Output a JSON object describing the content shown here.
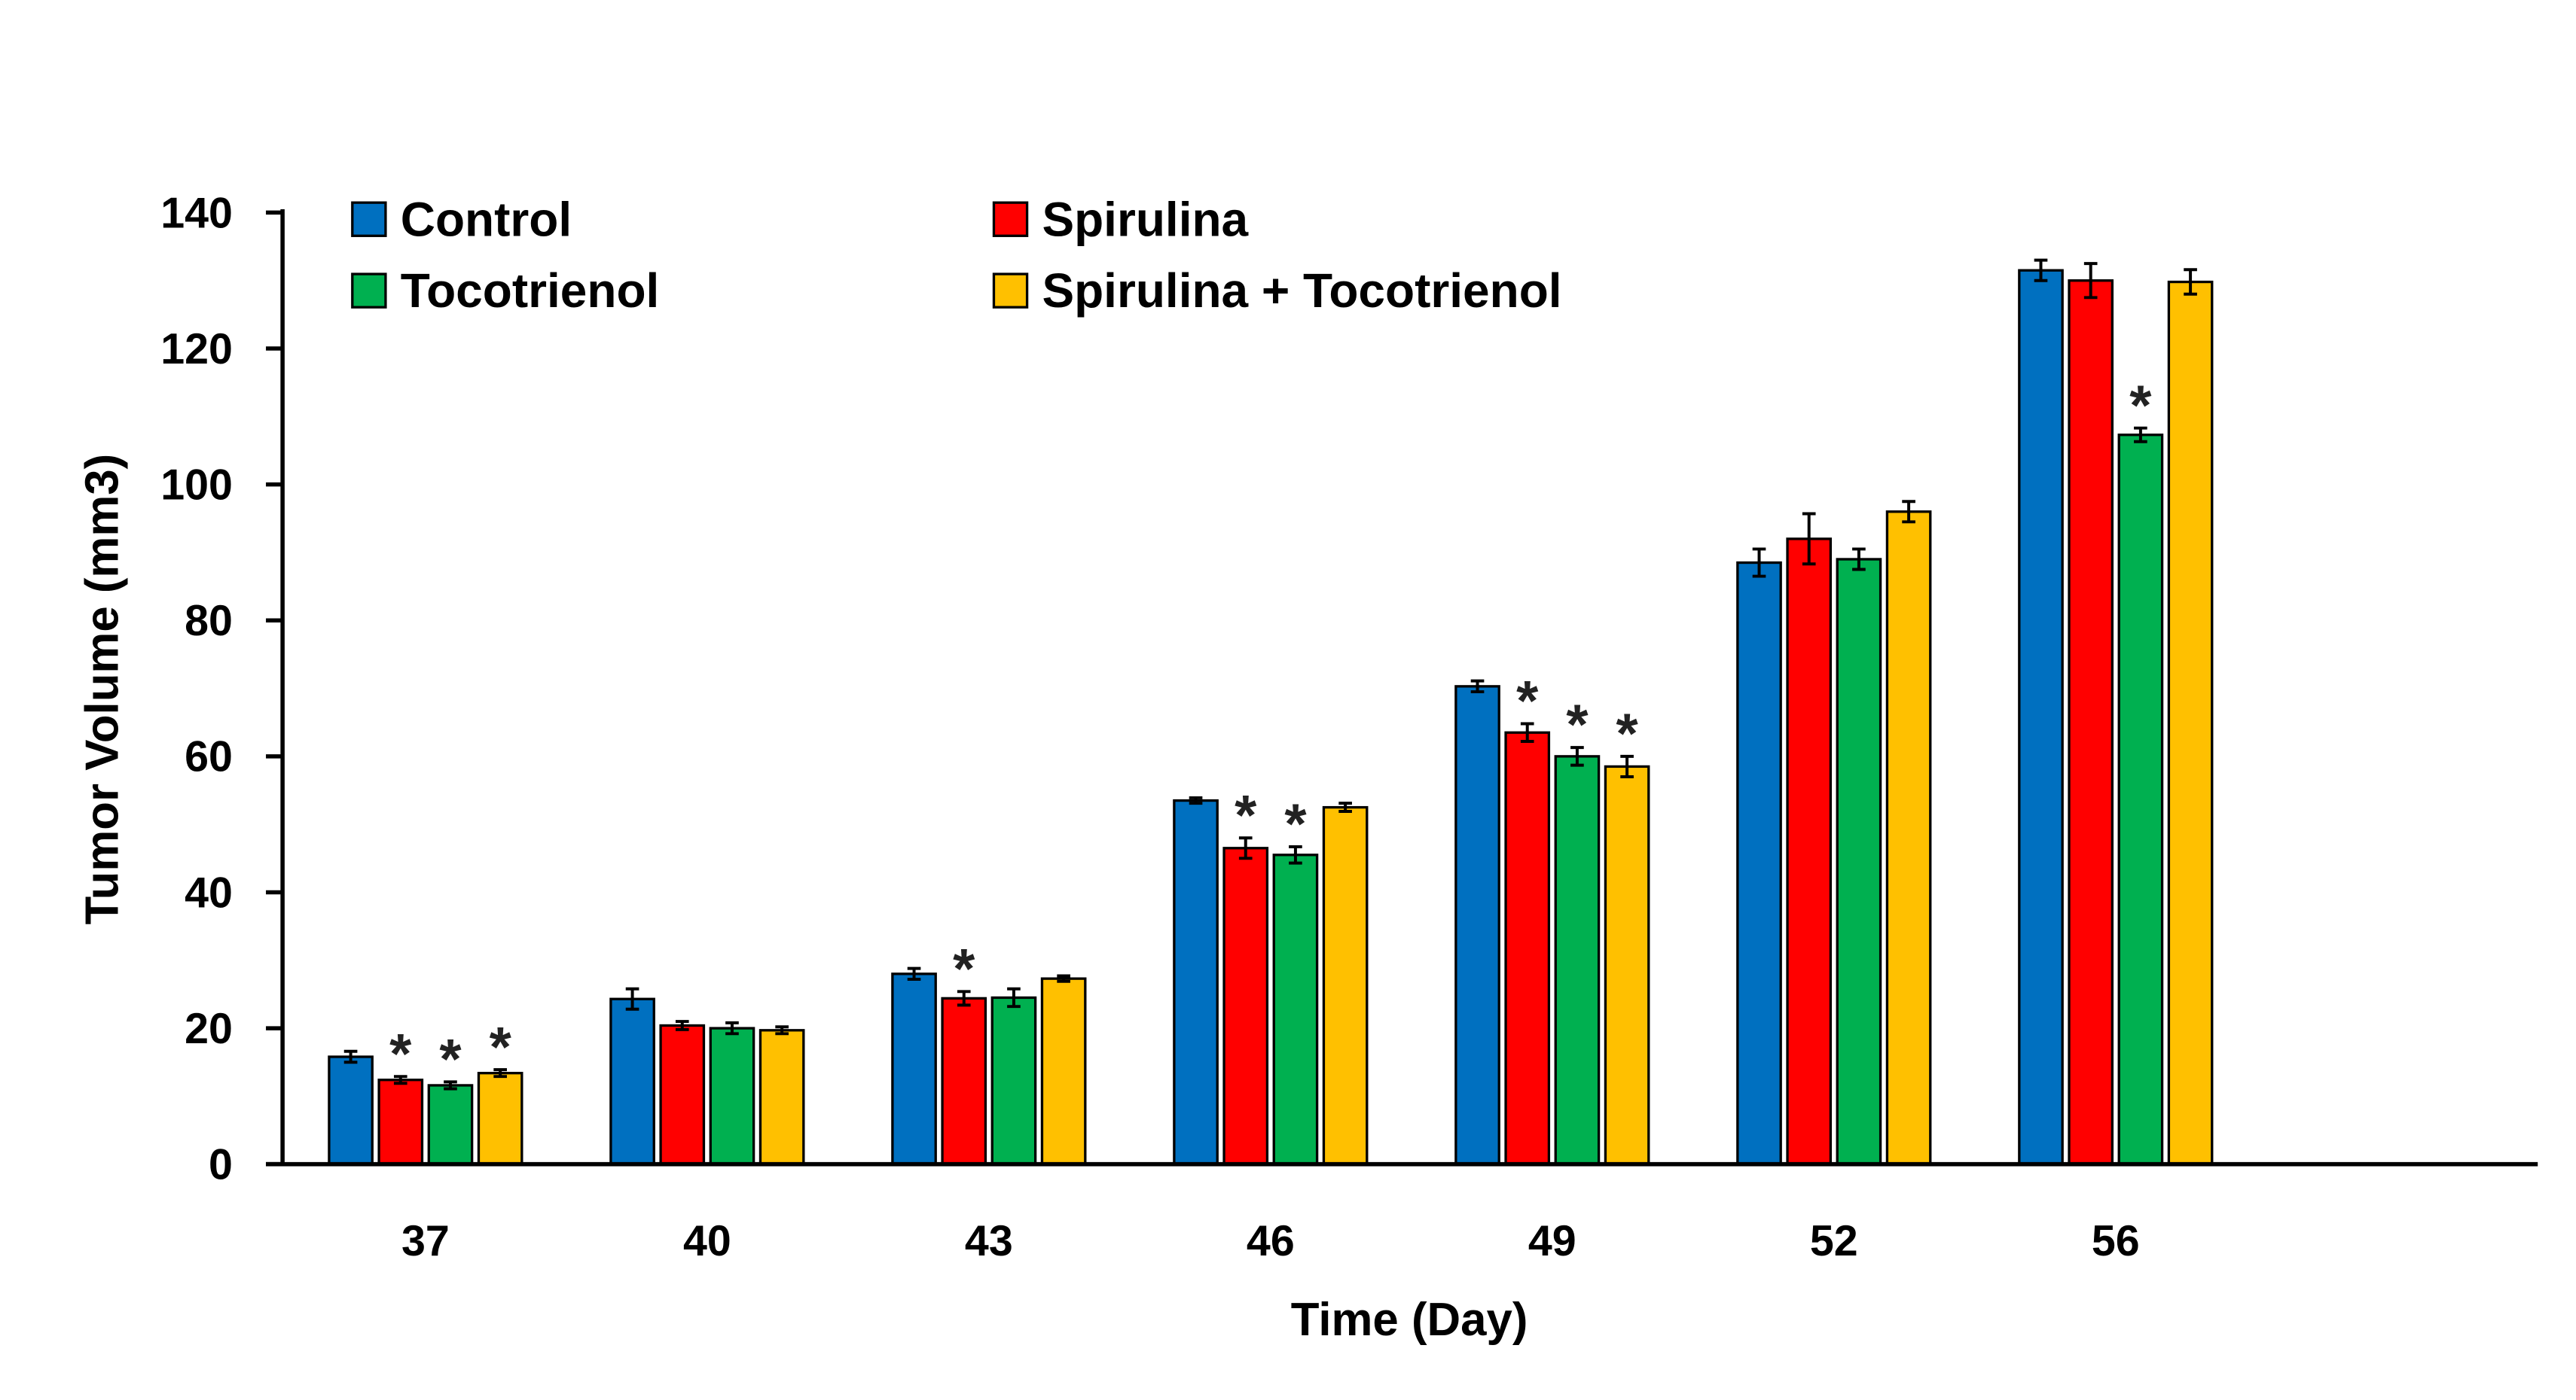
{
  "chart_data": {
    "type": "bar",
    "title": "",
    "xlabel": "Time (Day)",
    "ylabel": "Tumor Volume (mm3)",
    "ylim": [
      0,
      140
    ],
    "yticks": [
      0,
      20,
      40,
      60,
      80,
      100,
      120,
      140
    ],
    "ytick_labels": [
      "0",
      "20",
      "40",
      "60",
      "80",
      "100",
      "120",
      "140"
    ],
    "categories": [
      "37",
      "40",
      "43",
      "46",
      "49",
      "52",
      "56"
    ],
    "grid": false,
    "legend_placement": "top-left",
    "significance_marker": "*",
    "series": [
      {
        "name": "Control",
        "color": "#0070C0",
        "values": [
          15.8,
          24.3,
          28.0,
          53.5,
          70.3,
          88.5,
          131.5
        ],
        "errors": [
          0.8,
          1.5,
          0.8,
          0.4,
          0.8,
          2.0,
          1.5
        ],
        "significant": [
          false,
          false,
          false,
          false,
          false,
          false,
          false
        ]
      },
      {
        "name": "Spirulina",
        "color": "#FF0000",
        "values": [
          12.4,
          20.4,
          24.4,
          46.5,
          63.5,
          92.0,
          130.0
        ],
        "errors": [
          0.5,
          0.6,
          1.0,
          1.5,
          1.3,
          3.7,
          2.5
        ],
        "significant": [
          true,
          false,
          true,
          true,
          true,
          false,
          false
        ]
      },
      {
        "name": "Tocotrienol",
        "color": "#00B050",
        "values": [
          11.6,
          20.0,
          24.5,
          45.5,
          60.0,
          89.0,
          107.3
        ],
        "errors": [
          0.5,
          0.8,
          1.3,
          1.2,
          1.3,
          1.5,
          1.0
        ],
        "significant": [
          true,
          false,
          false,
          true,
          true,
          false,
          true
        ]
      },
      {
        "name": "Spirulina + Tocotrienol",
        "color": "#FFC000",
        "values": [
          13.4,
          19.7,
          27.3,
          52.5,
          58.5,
          96.0,
          129.8
        ],
        "errors": [
          0.5,
          0.5,
          0.4,
          0.6,
          1.5,
          1.5,
          1.8
        ],
        "significant": [
          true,
          false,
          false,
          false,
          true,
          false,
          false
        ]
      }
    ]
  }
}
